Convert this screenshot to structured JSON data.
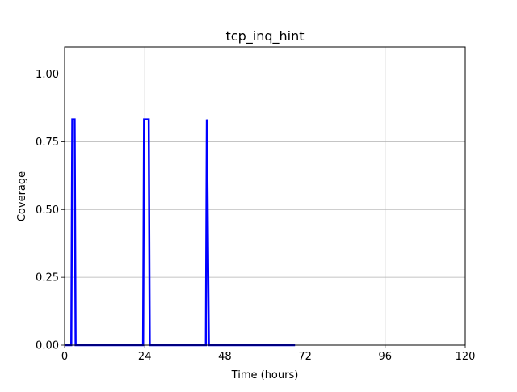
{
  "chart_data": {
    "type": "line",
    "title": "tcp_inq_hint",
    "xlabel": "Time (hours)",
    "ylabel": "Coverage",
    "xlim": [
      0,
      120
    ],
    "ylim": [
      0,
      1.1
    ],
    "x_ticks": [
      0,
      24,
      48,
      72,
      96,
      120
    ],
    "x_tick_labels": [
      "0",
      "24",
      "48",
      "72",
      "96",
      "120"
    ],
    "y_ticks": [
      0,
      0.25,
      0.5,
      0.75,
      1.0
    ],
    "y_tick_labels": [
      "0.00",
      "0.25",
      "0.50",
      "0.75",
      "1.00"
    ],
    "grid": true,
    "legend": "none",
    "series": [
      {
        "color": "#0000ff",
        "points": [
          [
            0,
            0
          ],
          [
            2.0,
            0
          ],
          [
            2.3,
            0.833
          ],
          [
            3.0,
            0.833
          ],
          [
            3.3,
            0
          ],
          [
            23.5,
            0
          ],
          [
            23.8,
            0.833
          ],
          [
            25.2,
            0.833
          ],
          [
            25.5,
            0
          ],
          [
            42.3,
            0
          ],
          [
            42.6,
            0.833
          ],
          [
            43.2,
            0
          ],
          [
            69.0,
            0
          ]
        ]
      }
    ]
  }
}
